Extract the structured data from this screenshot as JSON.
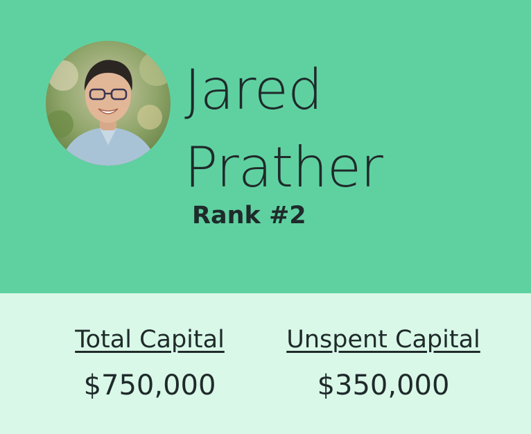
{
  "profile": {
    "avatar_alt": "",
    "first_name": "Jared",
    "last_name": "Prather",
    "rank": "Rank #2"
  },
  "stats": {
    "total_capital_label": "Total Capital",
    "total_capital_value": "$750,000",
    "unspent_capital_label": "Unspent Capital",
    "unspent_capital_value": "$350,000"
  },
  "colors": {
    "header_bg": "#5fd1a1",
    "stats_bg": "#d9f8e8",
    "text": "#1f2a2a"
  }
}
